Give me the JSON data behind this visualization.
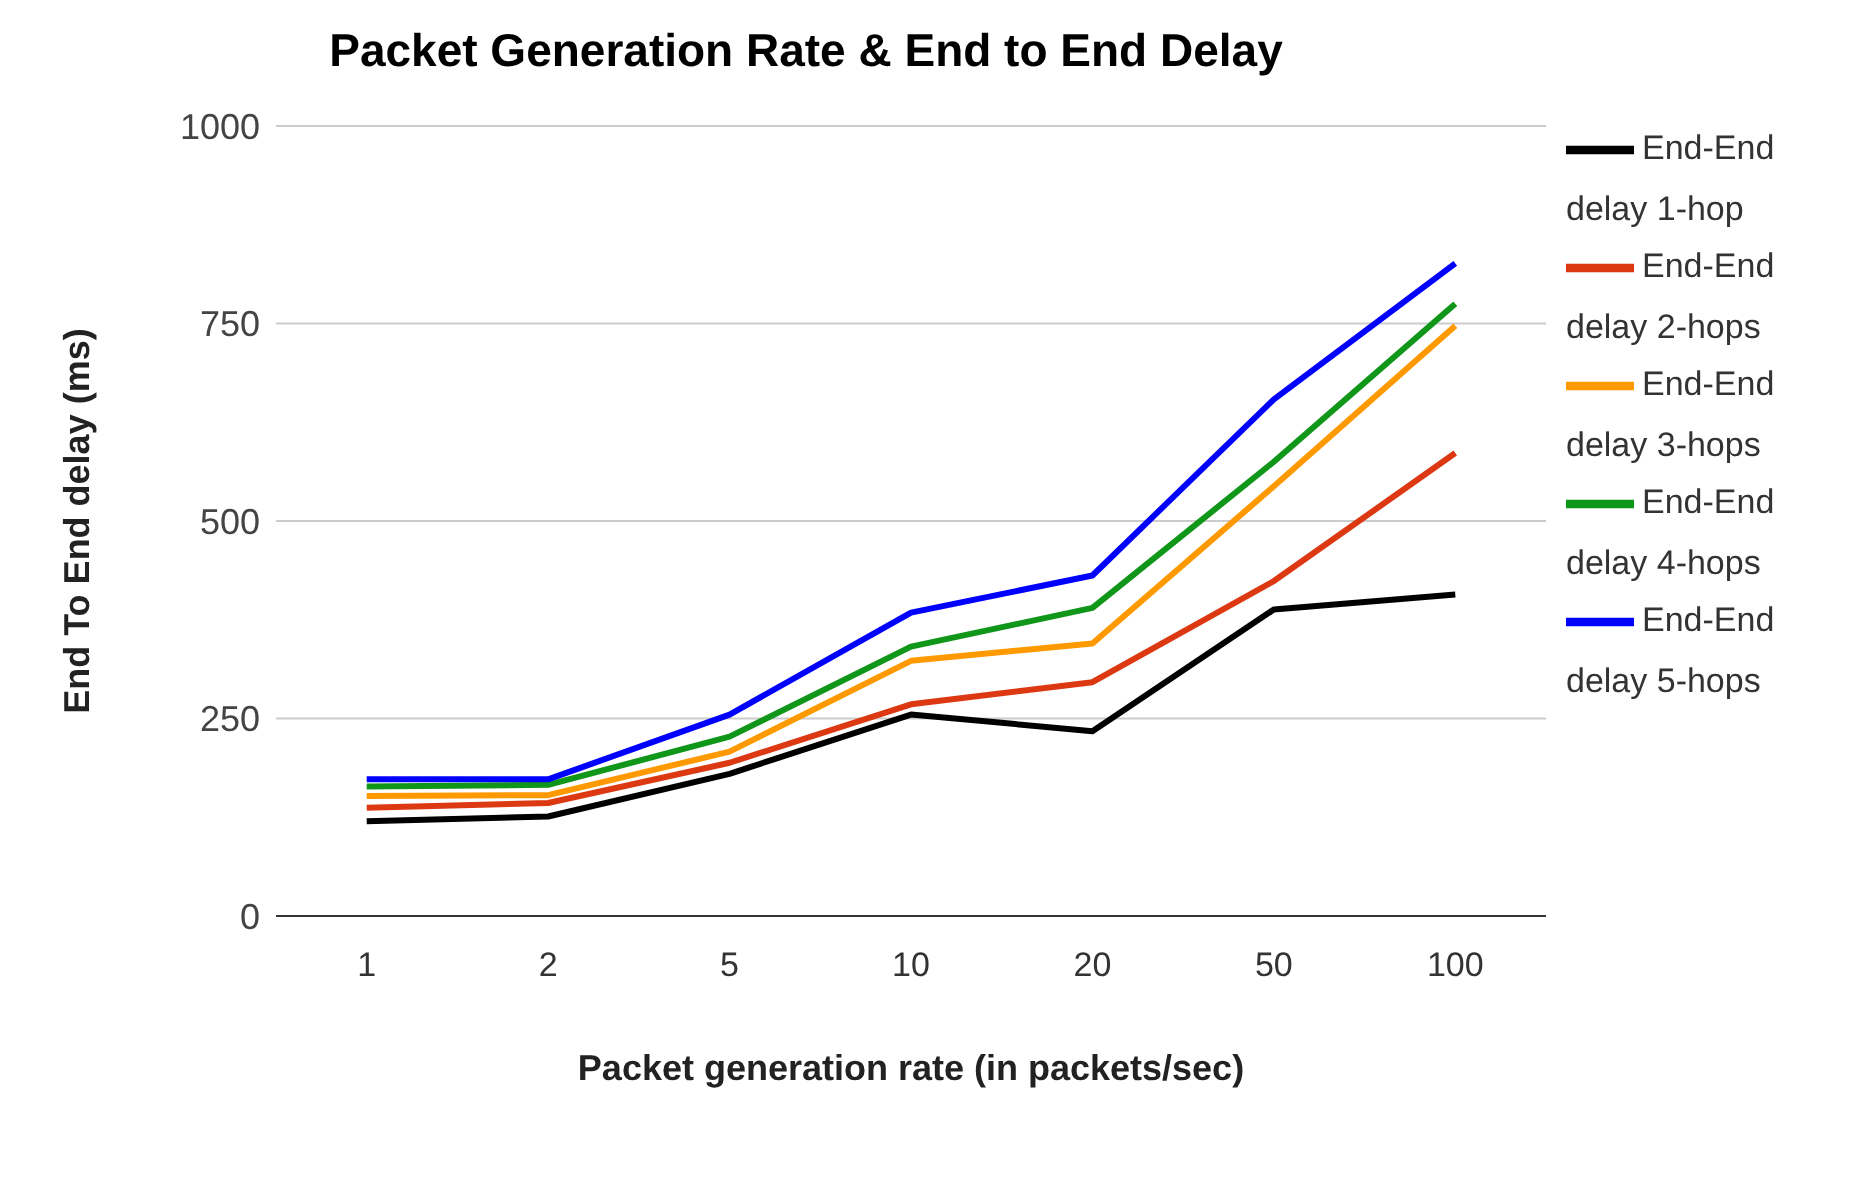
{
  "chart_data": {
    "type": "line",
    "title": "Packet Generation Rate & End to End Delay",
    "xlabel": "Packet generation rate (in packets/sec)",
    "ylabel": "End To End delay (ms)",
    "categories": [
      "1",
      "2",
      "5",
      "10",
      "20",
      "50",
      "100"
    ],
    "series": [
      {
        "name": "End-End delay 1-hop",
        "color": "#000000",
        "values": [
          120,
          126,
          180,
          255,
          234,
          388,
          407
        ]
      },
      {
        "name": "End-End delay 2-hops",
        "color": "#dc3912",
        "values": [
          137,
          143,
          194,
          268,
          296,
          424,
          586
        ]
      },
      {
        "name": "End-End delay 3-hops",
        "color": "#ff9900",
        "values": [
          152,
          153,
          208,
          323,
          345,
          544,
          747
        ]
      },
      {
        "name": "End-End delay 4-hops",
        "color": "#109618",
        "values": [
          164,
          166,
          227,
          341,
          390,
          575,
          775
        ]
      },
      {
        "name": "End-End delay 5-hops",
        "color": "#0000ff",
        "values": [
          173,
          173,
          255,
          384,
          431,
          654,
          826
        ]
      }
    ],
    "ylim": [
      0,
      1000
    ],
    "yticks": [
      0,
      250,
      500,
      750,
      1000
    ],
    "grid": "y",
    "legend": "right",
    "marker": "none",
    "line_style": "solid"
  }
}
